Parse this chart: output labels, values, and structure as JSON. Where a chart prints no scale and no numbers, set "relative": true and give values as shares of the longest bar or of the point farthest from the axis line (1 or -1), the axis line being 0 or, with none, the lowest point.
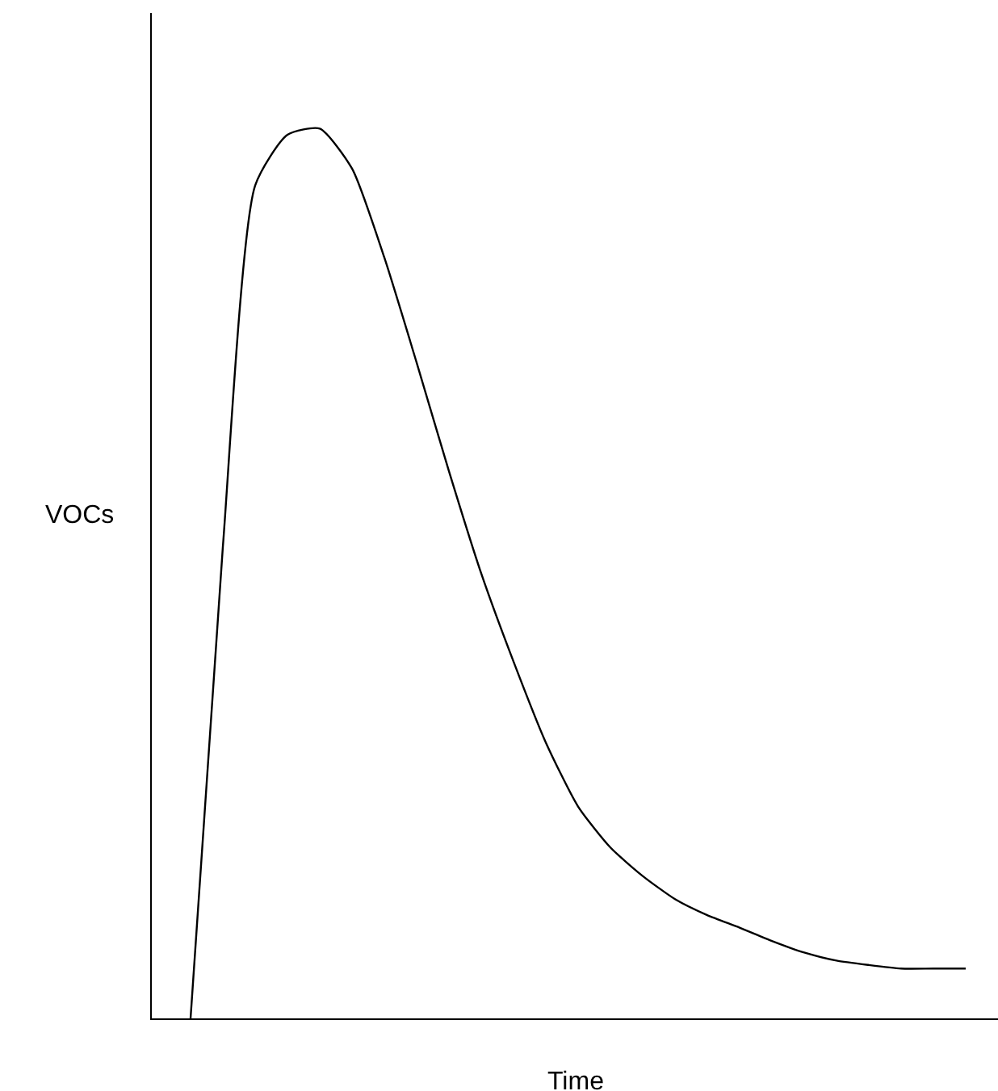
{
  "chart_data": {
    "type": "line",
    "relative": true,
    "xlabel": "Time",
    "ylabel": "VOCs",
    "color": "#000000",
    "marker": "none",
    "line_style": "solid",
    "legend": false,
    "categories": [
      null,
      null,
      null,
      null,
      null,
      null,
      null,
      null,
      null,
      null,
      null,
      null,
      null,
      null,
      null,
      null,
      null,
      null,
      null,
      null,
      null,
      null,
      null,
      null,
      null
    ],
    "values": [
      0,
      0.53,
      0.936,
      0.993,
      1.0,
      0.955,
      0.855,
      0.737,
      0.615,
      0.5,
      0.401,
      0.31,
      0.238,
      0.192,
      0.16,
      0.134,
      0.116,
      0.102,
      0.087,
      0.074,
      0.065,
      0.06,
      0.056,
      0.056,
      0.056
    ]
  }
}
